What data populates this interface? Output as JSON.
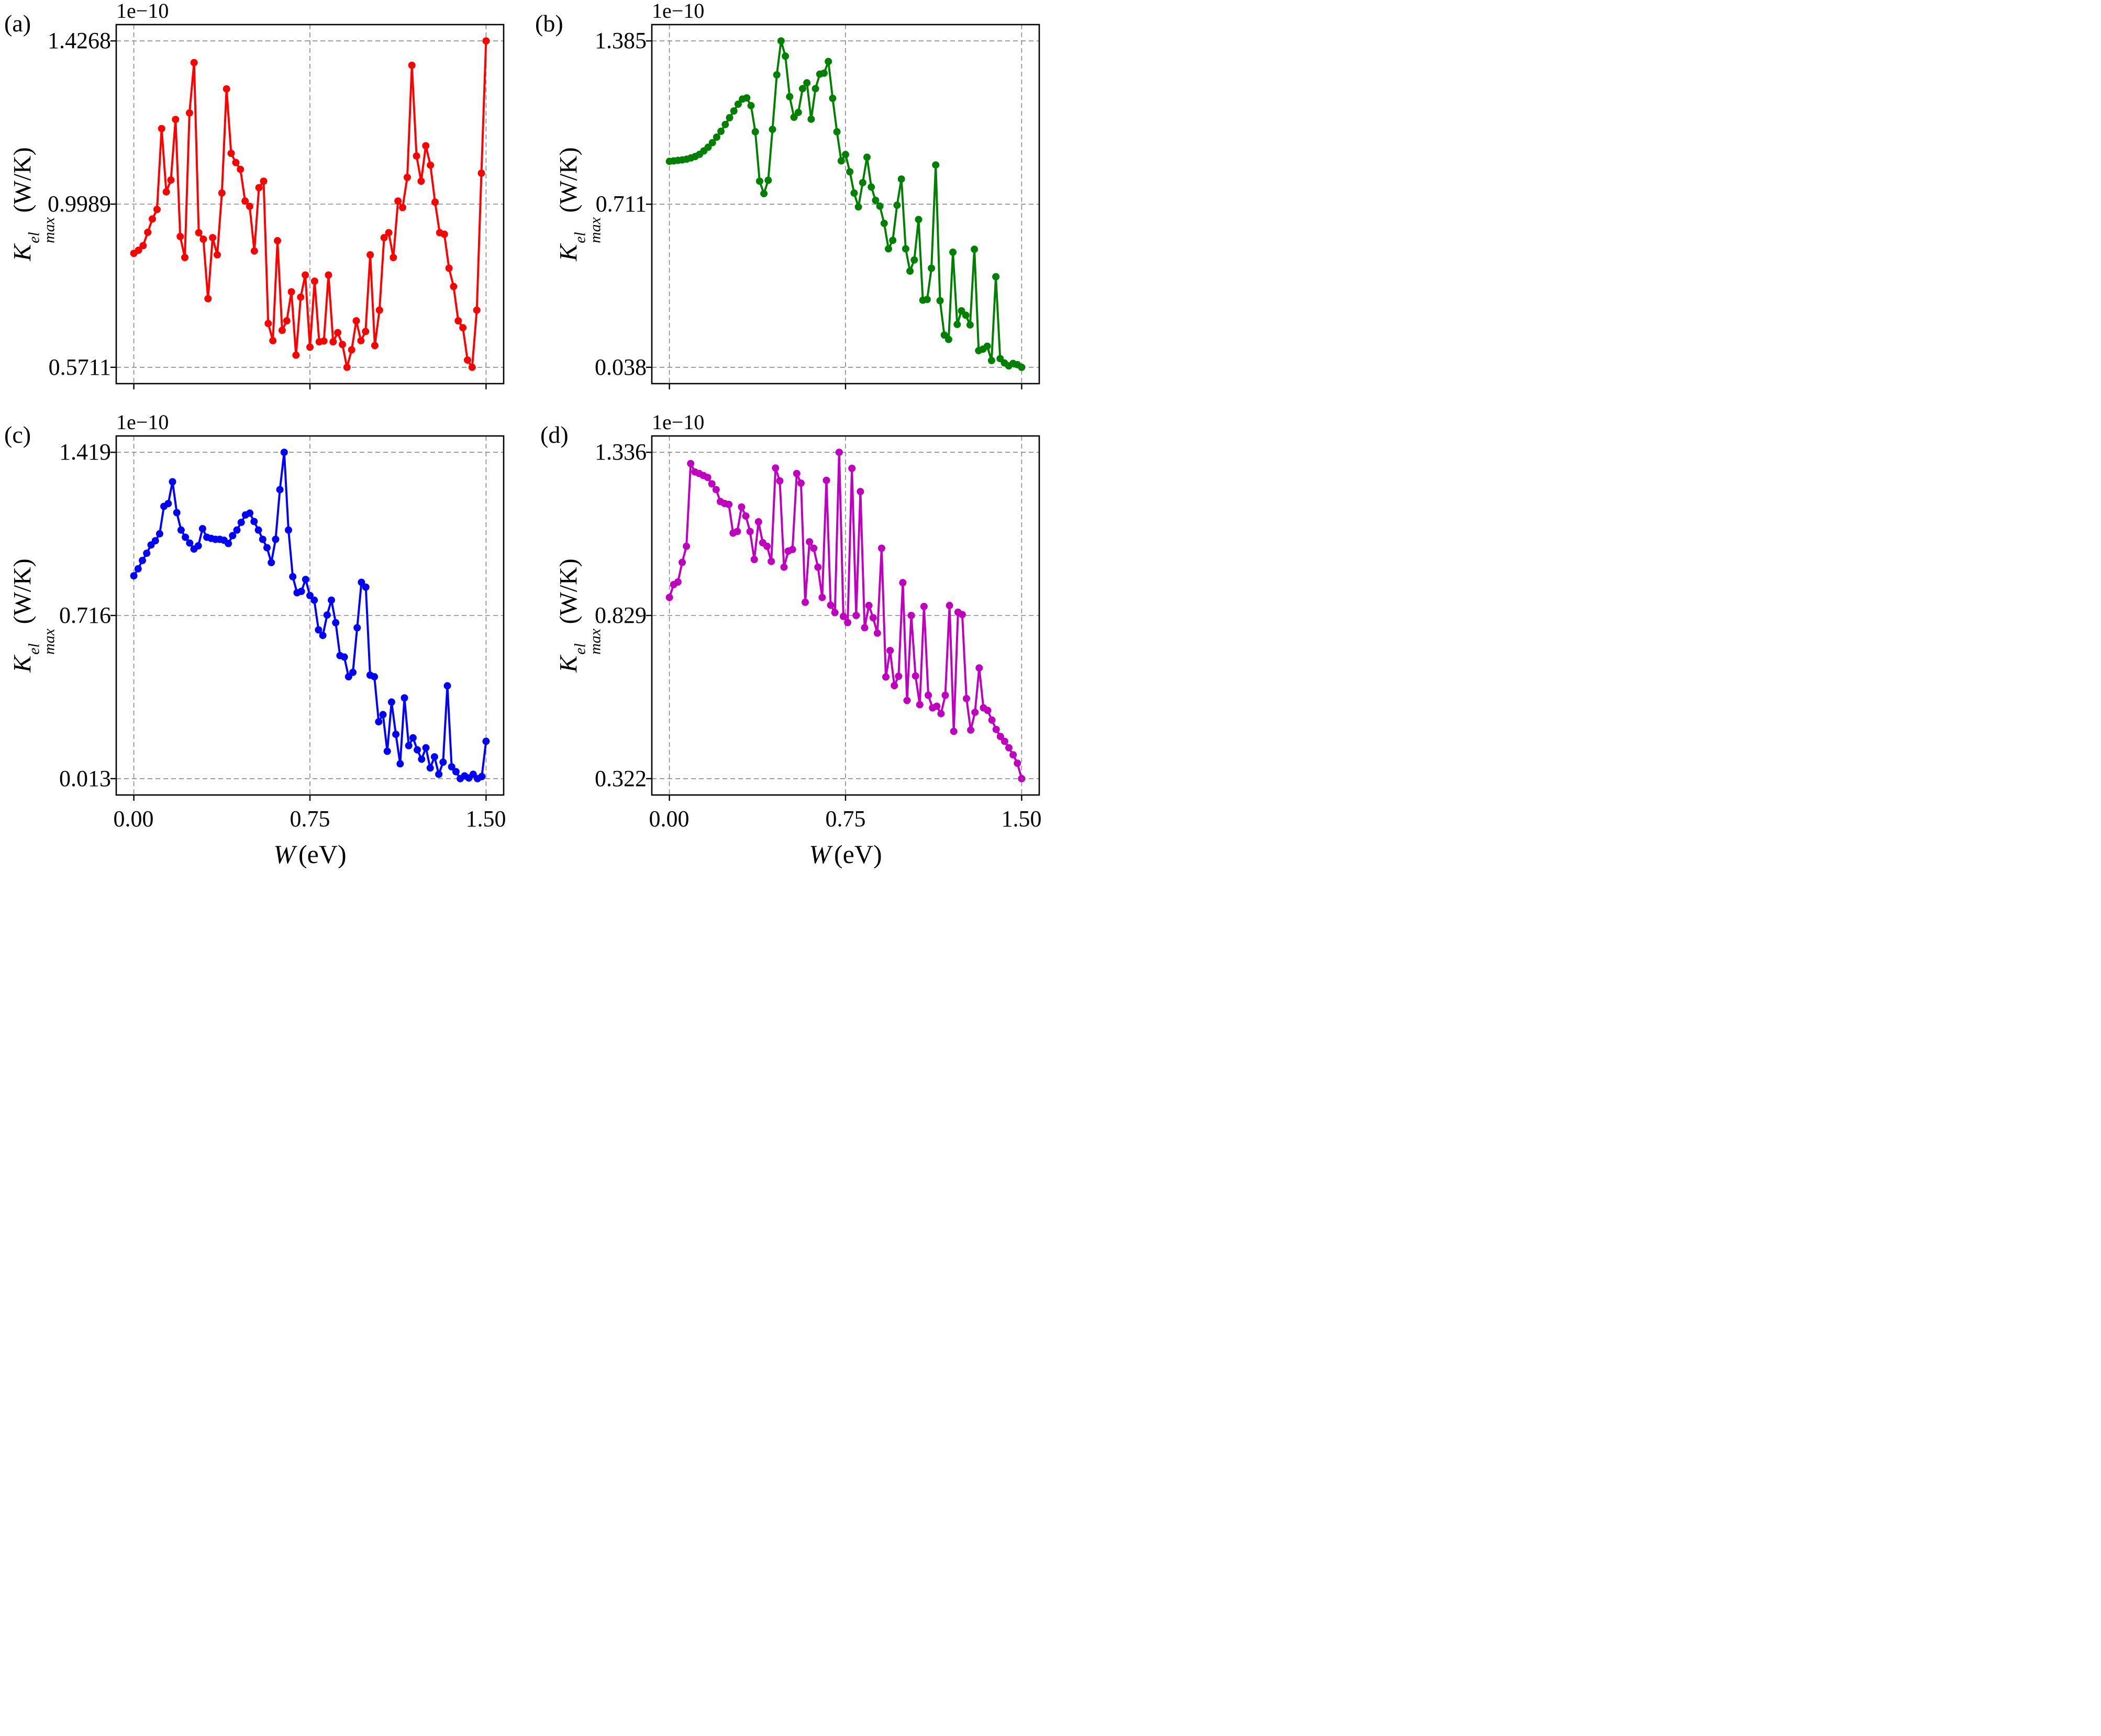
{
  "shared": {
    "offset_label": "1e−10",
    "ylabel": {
      "symbol": "K",
      "superscript": "el",
      "subscript": "max",
      "unit": "(W/K)"
    },
    "xlabel": {
      "symbol": "W",
      "unit": "(eV)"
    },
    "x_tick_labels": [
      "0.00",
      "0.75",
      "1.50"
    ],
    "grid_color": "#878787",
    "spine_color": "#000000",
    "background": "#ffffff"
  },
  "chart_data": [
    {
      "type": "line",
      "panel_label": "(a)",
      "color": "#ff0000",
      "marker": "circle",
      "xlabel": "W (eV)",
      "ylabel": "K^el_max (W/K)",
      "value_scale": "1e-10",
      "x_min": 0,
      "x_max": 1.5,
      "x_ticks": [
        0,
        0.75,
        1.5
      ],
      "y_ticks": [
        1.4268,
        0.9989,
        0.5711
      ],
      "y_tick_labels": [
        "1.4268",
        "0.9989",
        "0.5711"
      ],
      "grid": true,
      "values": [
        0.87,
        0.878,
        0.89,
        0.925,
        0.96,
        0.985,
        1.197,
        1.031,
        1.062,
        1.221,
        0.914,
        0.859,
        1.238,
        1.37,
        0.924,
        0.907,
        0.751,
        0.911,
        0.866,
        1.028,
        1.301,
        1.132,
        1.108,
        1.09,
        1.007,
        0.993,
        0.876,
        1.042,
        1.059,
        0.686,
        0.641,
        0.903,
        0.668,
        0.693,
        0.769,
        0.603,
        0.755,
        0.813,
        0.624,
        0.797,
        0.638,
        0.64,
        0.813,
        0.638,
        0.662,
        0.631,
        0.5711,
        0.617,
        0.693,
        0.641,
        0.665,
        0.866,
        0.628,
        0.721,
        0.911,
        0.924,
        0.859,
        1.007,
        0.99,
        1.069,
        1.363,
        1.125,
        1.059,
        1.152,
        1.101,
        1.004,
        0.924,
        0.92,
        0.831,
        0.783,
        0.693,
        0.675,
        0.59,
        0.5711,
        0.721,
        1.08,
        1.4268
      ]
    },
    {
      "type": "line",
      "panel_label": "(b)",
      "color": "#008000",
      "marker": "circle",
      "xlabel": "W (eV)",
      "ylabel": "K^el_max (W/K)",
      "value_scale": "1e-10",
      "x_min": 0,
      "x_max": 1.5,
      "x_ticks": [
        0,
        0.75,
        1.5
      ],
      "y_ticks": [
        1.385,
        0.711,
        0.038
      ],
      "y_tick_labels": [
        "1.385",
        "0.711",
        "0.038"
      ],
      "grid": true,
      "values": [
        0.888,
        0.89,
        0.892,
        0.894,
        0.897,
        0.902,
        0.908,
        0.917,
        0.931,
        0.946,
        0.965,
        0.988,
        1.012,
        1.04,
        1.068,
        1.096,
        1.124,
        1.145,
        1.15,
        1.118,
        1.01,
        0.806,
        0.755,
        0.81,
        1.02,
        1.245,
        1.385,
        1.322,
        1.155,
        1.07,
        1.09,
        1.188,
        1.212,
        1.062,
        1.188,
        1.248,
        1.252,
        1.3,
        1.148,
        1.01,
        0.89,
        0.916,
        0.845,
        0.757,
        0.7,
        0.8,
        0.905,
        0.782,
        0.727,
        0.703,
        0.632,
        0.527,
        0.562,
        0.707,
        0.815,
        0.527,
        0.435,
        0.481,
        0.648,
        0.315,
        0.318,
        0.447,
        0.873,
        0.313,
        0.171,
        0.153,
        0.513,
        0.215,
        0.271,
        0.253,
        0.213,
        0.525,
        0.107,
        0.113,
        0.125,
        0.066,
        0.412,
        0.074,
        0.056,
        0.044,
        0.054,
        0.049,
        0.038
      ]
    },
    {
      "type": "line",
      "panel_label": "(c)",
      "color": "#0000ff",
      "marker": "circle",
      "xlabel": "W (eV)",
      "ylabel": "K^el_max (W/K)",
      "value_scale": "1e-10",
      "x_min": 0,
      "x_max": 1.5,
      "x_ticks": [
        0,
        0.75,
        1.5
      ],
      "y_ticks": [
        1.419,
        0.716,
        0.013
      ],
      "y_tick_labels": [
        "1.419",
        "0.716",
        "0.013"
      ],
      "grid": true,
      "values": [
        0.887,
        0.917,
        0.953,
        0.984,
        1.02,
        1.038,
        1.068,
        1.186,
        1.198,
        1.292,
        1.159,
        1.084,
        1.053,
        1.028,
        1.002,
        1.016,
        1.09,
        1.053,
        1.048,
        1.044,
        1.044,
        1.04,
        1.026,
        1.06,
        1.084,
        1.117,
        1.149,
        1.157,
        1.121,
        1.084,
        1.044,
        1.008,
        0.944,
        1.044,
        1.258,
        1.419,
        1.084,
        0.883,
        0.814,
        0.82,
        0.871,
        0.802,
        0.782,
        0.654,
        0.63,
        0.718,
        0.782,
        0.685,
        0.543,
        0.537,
        0.452,
        0.471,
        0.663,
        0.859,
        0.838,
        0.459,
        0.452,
        0.258,
        0.289,
        0.131,
        0.343,
        0.204,
        0.077,
        0.361,
        0.155,
        0.189,
        0.137,
        0.097,
        0.146,
        0.059,
        0.107,
        0.032,
        0.084,
        0.413,
        0.064,
        0.043,
        0.013,
        0.025,
        0.016,
        0.032,
        0.013,
        0.022,
        0.174
      ]
    },
    {
      "type": "line",
      "panel_label": "(d)",
      "color": "#bf00bf",
      "marker": "circle",
      "xlabel": "W (eV)",
      "ylabel": "K^el_max (W/K)",
      "value_scale": "1e-10",
      "x_min": 0,
      "x_max": 1.5,
      "x_ticks": [
        0,
        0.75,
        1.5
      ],
      "y_ticks": [
        1.336,
        0.829,
        0.322
      ],
      "y_tick_labels": [
        "1.336",
        "0.829",
        "0.322"
      ],
      "grid": true,
      "values": [
        0.885,
        0.925,
        0.933,
        0.994,
        1.044,
        1.301,
        1.275,
        1.27,
        1.264,
        1.258,
        1.238,
        1.22,
        1.183,
        1.177,
        1.174,
        1.085,
        1.09,
        1.166,
        1.138,
        1.09,
        1.003,
        1.12,
        1.055,
        1.044,
        0.997,
        1.287,
        1.247,
        0.979,
        1.029,
        1.034,
        1.27,
        1.24,
        0.87,
        1.058,
        1.038,
        0.979,
        0.885,
        1.249,
        0.861,
        0.838,
        1.336,
        0.826,
        0.807,
        1.286,
        0.829,
        1.214,
        0.791,
        0.86,
        0.822,
        0.774,
        1.038,
        0.638,
        0.72,
        0.611,
        0.64,
        0.931,
        0.565,
        0.829,
        0.641,
        0.552,
        0.857,
        0.581,
        0.542,
        0.547,
        0.524,
        0.581,
        0.86,
        0.469,
        0.839,
        0.832,
        0.571,
        0.473,
        0.528,
        0.666,
        0.542,
        0.534,
        0.504,
        0.475,
        0.453,
        0.438,
        0.418,
        0.396,
        0.37,
        0.322
      ]
    }
  ]
}
